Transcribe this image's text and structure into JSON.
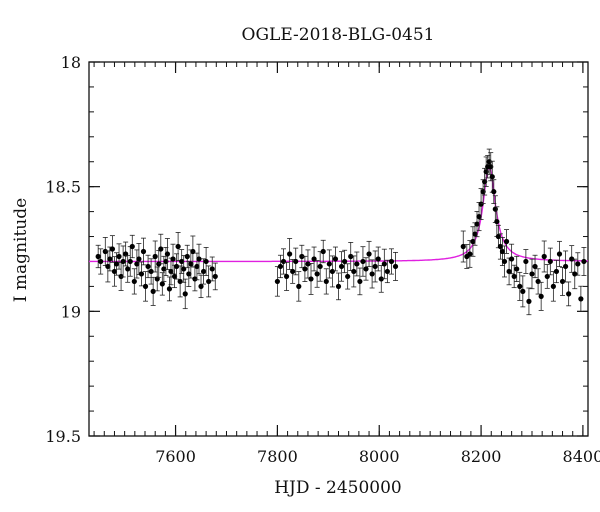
{
  "chart_data": {
    "type": "scatter",
    "title": "OGLE-2018-BLG-0451",
    "xlabel": "HJD - 2450000",
    "ylabel": "I magnitude",
    "xlim": [
      7430,
      8410
    ],
    "ylim": [
      19.5,
      18.0
    ],
    "y_inverted": true,
    "grid": false,
    "x_major_ticks": [
      7600,
      7800,
      8000,
      8200,
      8400
    ],
    "x_minor_step": 20,
    "y_major_ticks": [
      18.0,
      18.5,
      19.0,
      19.5
    ],
    "y_minor_step": 0.1,
    "x_tick_labels": [
      "7600",
      "7800",
      "8000",
      "8200",
      "8400"
    ],
    "y_tick_labels": [
      "18",
      "18.5",
      "19",
      "19.5"
    ],
    "series": [
      {
        "kind": "observations",
        "color": "#000000",
        "x": [
          7448,
          7453,
          7462,
          7467,
          7471,
          7476,
          7480,
          7484,
          7489,
          7493,
          7497,
          7502,
          7506,
          7511,
          7515,
          7519,
          7524,
          7528,
          7533,
          7537,
          7541,
          7546,
          7552,
          7556,
          7560,
          7564,
          7567,
          7571,
          7574,
          7577,
          7581,
          7584,
          7588,
          7591,
          7595,
          7598,
          7602,
          7605,
          7609,
          7612,
          7616,
          7619,
          7623,
          7626,
          7630,
          7634,
          7638,
          7642,
          7646,
          7650,
          7655,
          7660,
          7665,
          7672,
          7678,
          7800,
          7806,
          7812,
          7818,
          7824,
          7830,
          7836,
          7842,
          7848,
          7854,
          7860,
          7866,
          7872,
          7878,
          7884,
          7890,
          7896,
          7902,
          7908,
          7914,
          7920,
          7926,
          7932,
          7938,
          7944,
          7950,
          7956,
          7962,
          7968,
          7974,
          7980,
          7986,
          7992,
          7998,
          8004,
          8010,
          8016,
          8024,
          8032,
          8165,
          8172,
          8178,
          8184,
          8188,
          8192,
          8196,
          8200,
          8204,
          8207,
          8210,
          8213,
          8216,
          8219,
          8222,
          8225,
          8228,
          8231,
          8234,
          8238,
          8242,
          8246,
          8250,
          8255,
          8260,
          8265,
          8270,
          8276,
          8282,
          8288,
          8294,
          8300,
          8306,
          8312,
          8318,
          8324,
          8330,
          8336,
          8342,
          8348,
          8354,
          8360,
          8366,
          8372,
          8378,
          8384,
          8390,
          8396,
          8402
        ],
        "y": [
          18.78,
          18.8,
          18.76,
          18.82,
          18.79,
          18.75,
          18.84,
          18.81,
          18.78,
          18.86,
          18.8,
          18.77,
          18.83,
          18.8,
          18.74,
          18.88,
          18.81,
          18.79,
          18.85,
          18.76,
          18.9,
          18.82,
          18.84,
          18.92,
          18.78,
          18.87,
          18.81,
          18.75,
          18.89,
          18.83,
          18.8,
          18.77,
          18.91,
          18.84,
          18.79,
          18.86,
          18.82,
          18.74,
          18.88,
          18.8,
          18.83,
          18.93,
          18.78,
          18.85,
          18.81,
          18.76,
          18.87,
          18.82,
          18.79,
          18.9,
          18.84,
          18.8,
          18.88,
          18.83,
          18.86,
          18.88,
          18.82,
          18.8,
          18.86,
          18.77,
          18.84,
          18.8,
          18.9,
          18.78,
          18.83,
          18.81,
          18.87,
          18.79,
          18.85,
          18.82,
          18.76,
          18.88,
          18.81,
          18.84,
          18.79,
          18.9,
          18.82,
          18.8,
          18.86,
          18.78,
          18.84,
          18.81,
          18.88,
          18.8,
          18.83,
          18.77,
          18.85,
          18.82,
          18.79,
          18.87,
          18.81,
          18.84,
          18.8,
          18.82,
          18.74,
          18.78,
          18.77,
          18.72,
          18.69,
          18.65,
          18.62,
          18.57,
          18.52,
          18.48,
          18.44,
          18.42,
          18.4,
          18.42,
          18.46,
          18.52,
          18.59,
          18.64,
          18.7,
          18.74,
          18.76,
          18.8,
          18.72,
          18.84,
          18.79,
          18.86,
          18.83,
          18.9,
          18.92,
          18.8,
          18.96,
          18.85,
          18.82,
          18.88,
          18.94,
          18.78,
          18.86,
          18.8,
          18.9,
          18.84,
          18.77,
          18.88,
          18.82,
          18.93,
          18.79,
          18.85,
          18.81,
          18.95,
          18.8
        ]
      },
      {
        "kind": "model",
        "color": "#e020e0",
        "t0": 8216,
        "baseline": 18.8,
        "peak": 18.42,
        "tE": 15
      }
    ]
  }
}
